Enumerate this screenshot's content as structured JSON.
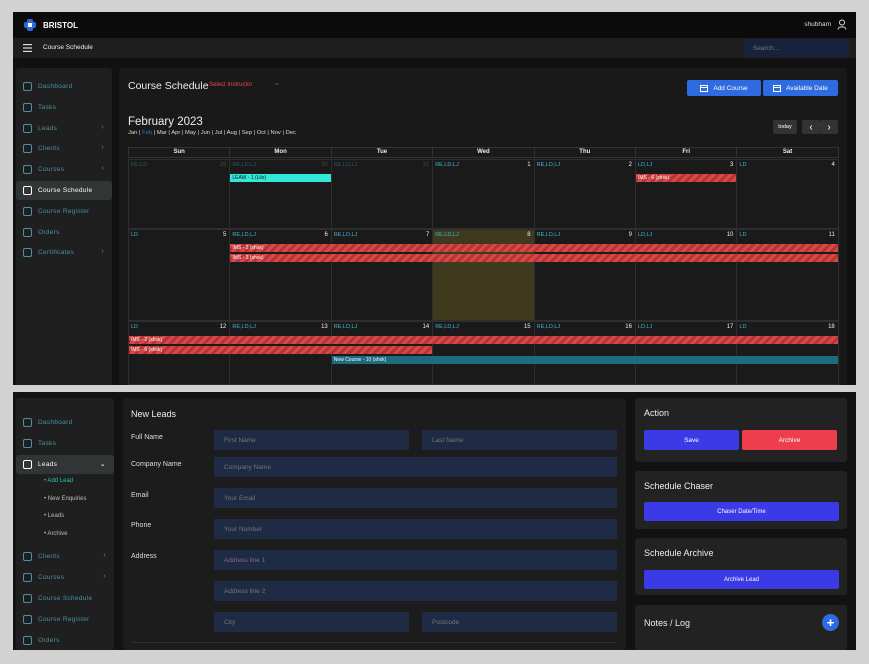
{
  "app": {
    "brand": "BRISTOL",
    "user": "shubham"
  },
  "crumb": "Course Schedule",
  "search_placeholder": "Search...",
  "sidebar1": {
    "items": [
      {
        "label": "Dashboard"
      },
      {
        "label": "Tasks"
      },
      {
        "label": "Leads",
        "chev": "›"
      },
      {
        "label": "Clients",
        "chev": "›"
      },
      {
        "label": "Courses",
        "chev": "›"
      },
      {
        "label": "Course Schedule"
      },
      {
        "label": "Course Register"
      },
      {
        "label": "Orders"
      },
      {
        "label": "Certificates",
        "chev": "›"
      }
    ]
  },
  "schedule": {
    "title": "Course Schedule",
    "instructor_placeholder": "Select Instructor",
    "instructor_chev": "⌄",
    "add_course": "Add Course",
    "available_date": "Available Date",
    "month_title": "February 2023",
    "months": [
      "Jan",
      "Feb",
      "Mar",
      "Apr",
      "May",
      "Jun",
      "Jul",
      "Aug",
      "Sep",
      "Oct",
      "Nov",
      "Dec"
    ],
    "active_month": "Feb",
    "today": "today",
    "prev": "‹",
    "next": "›",
    "weekdays": [
      "Sun",
      "Mon",
      "Tue",
      "Wed",
      "Thu",
      "Fri",
      "Sat"
    ],
    "weeks": [
      [
        {
          "d": "29",
          "tag": "RE,LD",
          "dim": true
        },
        {
          "d": "30",
          "tag": "RE,LD,LJ",
          "dim": true
        },
        {
          "d": "31",
          "tag": "RE,LD,LJ",
          "dim": true
        },
        {
          "d": "1",
          "tag": "RE,LD,LJ"
        },
        {
          "d": "2",
          "tag": "RE,LD,LJ"
        },
        {
          "d": "3",
          "tag": "LD,LJ"
        },
        {
          "d": "4",
          "tag": "LD"
        }
      ],
      [
        {
          "d": "5",
          "tag": "LD"
        },
        {
          "d": "6",
          "tag": "RE,LD,LJ"
        },
        {
          "d": "7",
          "tag": "RE,LD,LJ"
        },
        {
          "d": "8",
          "tag": "RE,LD,LJ"
        },
        {
          "d": "9",
          "tag": "RE,LD,LJ"
        },
        {
          "d": "10",
          "tag": "LD,LJ"
        },
        {
          "d": "11",
          "tag": "LD"
        }
      ],
      [
        {
          "d": "12",
          "tag": "LD"
        },
        {
          "d": "13",
          "tag": "RE,LD,LJ"
        },
        {
          "d": "14",
          "tag": "RE,LD,LJ"
        },
        {
          "d": "15",
          "tag": "RE,LD,LJ"
        },
        {
          "d": "16",
          "tag": "RE,LD,LJ"
        },
        {
          "d": "17",
          "tag": "LD,LJ"
        },
        {
          "d": "18",
          "tag": "LD"
        }
      ]
    ],
    "events": [
      {
        "label": "LEAW - 1 (Lilo)",
        "color": "cyan",
        "week": 0,
        "start": 1,
        "end": 1,
        "row": 0
      },
      {
        "label": "IMS - 6 (shsk)",
        "color": "red",
        "week": 0,
        "start": 5,
        "end": 5,
        "row": 0
      },
      {
        "label": "IMS - 2 (shsk)",
        "color": "red",
        "week": 1,
        "start": 1,
        "end": 6,
        "row": 0
      },
      {
        "label": "IMS - 3 (shsk)",
        "color": "red",
        "week": 1,
        "start": 1,
        "end": 6,
        "row": 1
      },
      {
        "label": "IMS - 2 (shsk)",
        "color": "red",
        "week": 2,
        "start": 0,
        "end": 6,
        "row": 0
      },
      {
        "label": "IMS - 6 (shsk)",
        "color": "red",
        "week": 2,
        "start": 0,
        "end": 2,
        "row": 1
      },
      {
        "label": "New Course - 10 (shsk)",
        "color": "teal",
        "week": 2,
        "start": 2,
        "end": 6,
        "row": 2
      }
    ],
    "highlight": {
      "week": 1,
      "day": 3
    }
  },
  "sidebar2": {
    "items": [
      {
        "label": "Dashboard"
      },
      {
        "label": "Tasks"
      },
      {
        "label": "Leads",
        "chev": "⌄"
      }
    ],
    "subs": [
      "• Add Lead",
      "• New Enquiries",
      "• Leads",
      "• Archive"
    ],
    "items_after": [
      {
        "label": "Clients",
        "chev": "›"
      },
      {
        "label": "Courses",
        "chev": "›"
      },
      {
        "label": "Course Schedule"
      },
      {
        "label": "Course Register"
      },
      {
        "label": "Orders"
      }
    ]
  },
  "leads": {
    "title": "New Leads",
    "full_name": "Full Name",
    "first_name_ph": "First Name",
    "last_name_ph": "Last Name",
    "company_name": "Company Name",
    "company_ph": "Company Name",
    "email": "Email",
    "email_ph": "Your Email",
    "phone": "Phone",
    "phone_ph": "Your Number",
    "address": "Address",
    "addr1_ph": "Address line 1",
    "addr2_ph": "Address line 2",
    "city_ph": "City",
    "postcode_ph": "Postcode"
  },
  "action": {
    "title": "Action",
    "save": "Save",
    "archive": "Archive"
  },
  "chaser": {
    "title": "Schedule Chaser",
    "button": "Chaser Date/Time"
  },
  "sched_archive": {
    "title": "Schedule Archive",
    "button": "Archive Lead"
  },
  "notes": {
    "title": "Notes / Log",
    "add": "+"
  },
  "colors": {
    "blue": "#2f6be0",
    "red": "#ee3e4e",
    "indigo": "#3a3ae6",
    "teal": "#4d8fa6"
  }
}
